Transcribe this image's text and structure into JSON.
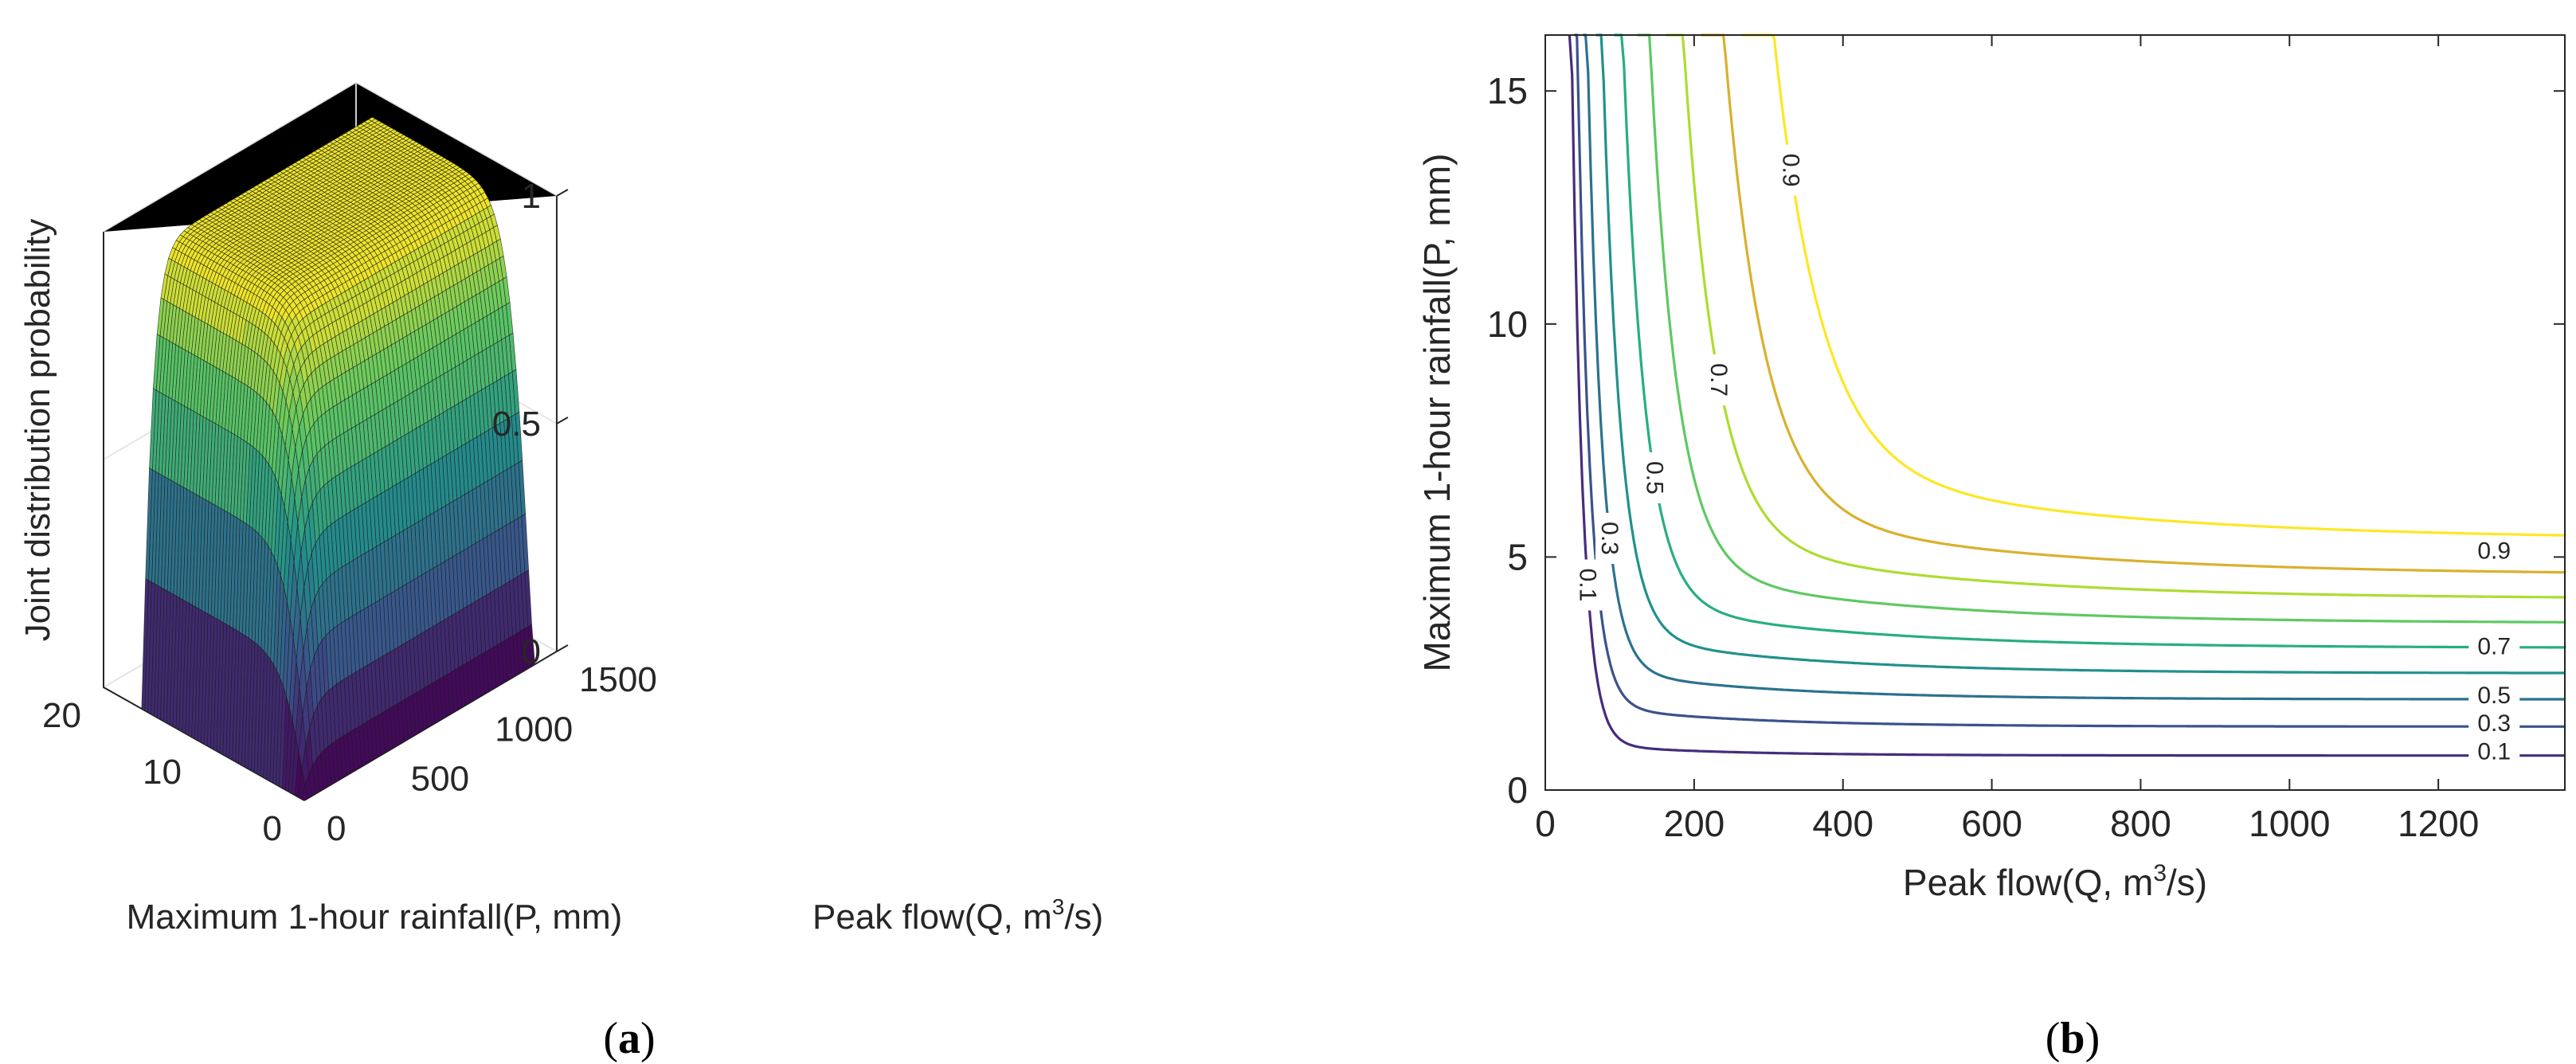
{
  "chart_data": [
    {
      "id": "a",
      "type": "surface3d",
      "panel_label_open": "(",
      "panel_label_letter": "a",
      "panel_label_close": ")",
      "zlabel": "Joint distribution probability",
      "xlabel": "Maximum 1-hour rainfall(P, mm)",
      "ylabel_main": "Peak flow(Q, m",
      "ylabel_sup": "3",
      "ylabel_tail": "/s)",
      "xlim": [
        0,
        20
      ],
      "ylim": [
        0,
        1500
      ],
      "zlim": [
        0,
        1
      ],
      "xticks": [
        0,
        10,
        20
      ],
      "xtick_labels": [
        "0",
        "10",
        "20"
      ],
      "yticks": [
        0,
        500,
        1000,
        1500
      ],
      "ytick_labels": [
        "0",
        "500",
        "1000",
        "1500"
      ],
      "zticks": [
        0,
        0.5,
        1
      ],
      "ztick_labels": [
        "0",
        "0.5",
        "1"
      ],
      "surface_domain": {
        "P": [
          0,
          16.2
        ],
        "Q": [
          0,
          1370
        ]
      },
      "grid": true,
      "colormap": [
        "#440154",
        "#3b528b",
        "#21918c",
        "#5ec962",
        "#fde725"
      ]
    },
    {
      "id": "b",
      "type": "contour",
      "panel_label_open": "(",
      "panel_label_letter": "b",
      "panel_label_close": ")",
      "xlabel_main": "Peak flow(Q, m",
      "xlabel_sup": "3",
      "xlabel_tail": "/s)",
      "ylabel": "Maximum 1-hour rainfall(P, mm)",
      "xlim": [
        0,
        1370
      ],
      "ylim": [
        0,
        16.2
      ],
      "xticks": [
        0,
        200,
        400,
        600,
        800,
        1000,
        1200
      ],
      "xtick_labels": [
        "0",
        "200",
        "400",
        "600",
        "800",
        "1000",
        "1200"
      ],
      "yticks": [
        0,
        5,
        10,
        15
      ],
      "ytick_labels": [
        "0",
        "5",
        "10",
        "15"
      ],
      "levels": [
        0.1,
        0.2,
        0.3,
        0.4,
        0.5,
        0.6,
        0.7,
        0.8,
        0.9
      ],
      "level_colors": [
        "#472d7b",
        "#3b528b",
        "#2c728e",
        "#21918c",
        "#28ae80",
        "#5ec962",
        "#addc30",
        "#d8b12e",
        "#fde725"
      ],
      "labeled_levels": [
        {
          "level": 0.1,
          "text": "0.1",
          "P": 0.85,
          "orient": "h"
        },
        {
          "level": 0.3,
          "text": "0.3",
          "P": 1.45,
          "orient": "h"
        },
        {
          "level": 0.5,
          "text": "0.5",
          "P": 2.05,
          "orient": "h"
        },
        {
          "level": 0.7,
          "text": "0.7",
          "P": 3.1,
          "orient": "h"
        },
        {
          "level": 0.9,
          "text": "0.9",
          "P": 5.15,
          "orient": "h"
        },
        {
          "level": 0.1,
          "text": "0.1",
          "P": 4.4,
          "orient": "v"
        },
        {
          "level": 0.3,
          "text": "0.3",
          "P": 5.4,
          "orient": "v"
        },
        {
          "level": 0.5,
          "text": "0.5",
          "P": 6.7,
          "orient": "v"
        },
        {
          "level": 0.7,
          "text": "0.7",
          "P": 8.8,
          "orient": "v"
        },
        {
          "level": 0.9,
          "text": "0.9",
          "P": 13.3,
          "orient": "v"
        }
      ]
    }
  ]
}
